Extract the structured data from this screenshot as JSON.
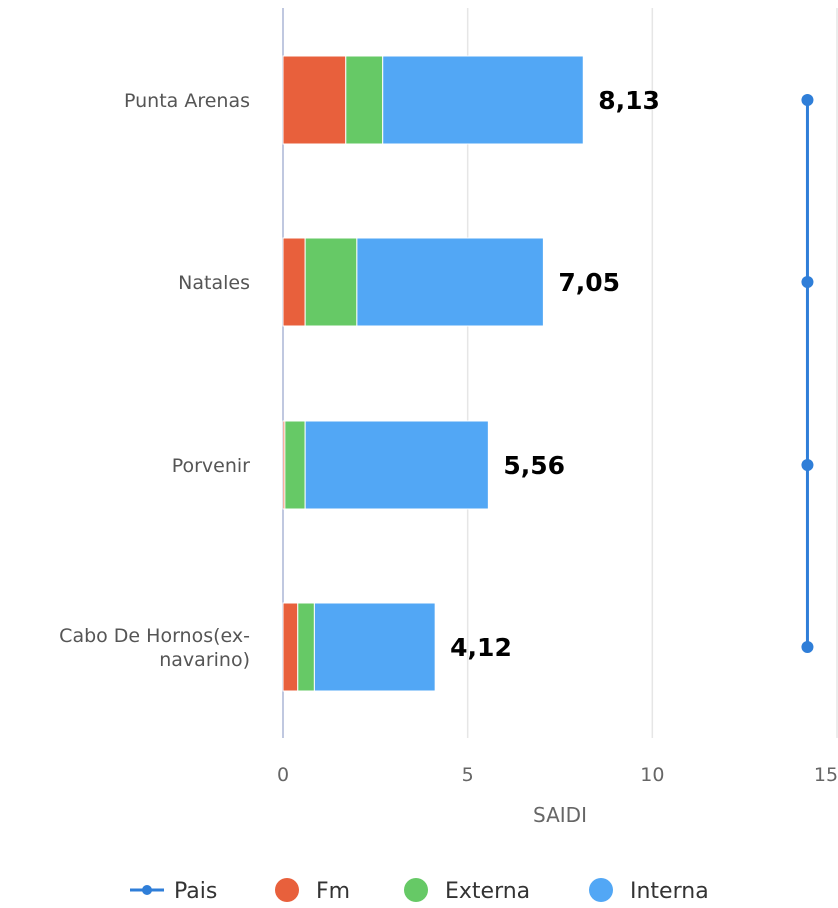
{
  "chart_data": {
    "type": "bar",
    "orientation": "horizontal",
    "stacked": true,
    "categories": [
      "Punta Arenas",
      "Natales",
      "Porvenir",
      "Cabo De Hornos(ex-navarino)"
    ],
    "category_lines": [
      [
        "Punta Arenas"
      ],
      [
        "Natales"
      ],
      [
        "Porvenir"
      ],
      [
        "Cabo De Hornos(ex-",
        "navarino)"
      ]
    ],
    "series": [
      {
        "name": "Fm",
        "color": "#e8603c",
        "values": [
          1.7,
          0.6,
          0.05,
          0.4
        ]
      },
      {
        "name": "Externa",
        "color": "#66c966",
        "values": [
          1.0,
          1.4,
          0.55,
          0.45
        ]
      },
      {
        "name": "Interna",
        "color": "#52a7f5",
        "values": [
          5.43,
          5.05,
          4.96,
          3.27
        ]
      }
    ],
    "totals": [
      "8,13",
      "7,05",
      "5,56",
      "4,12"
    ],
    "line_series": {
      "name": "Pais",
      "color": "#2f7ed8",
      "values": [
        14.2,
        14.2,
        14.2,
        14.2
      ]
    },
    "xlabel": "SAIDI",
    "xlim": [
      0,
      15
    ],
    "xticks": [
      0,
      5,
      10,
      15
    ],
    "grid": true,
    "legend_position": "bottom",
    "legend": [
      "Pais",
      "Fm",
      "Externa",
      "Interna"
    ]
  }
}
